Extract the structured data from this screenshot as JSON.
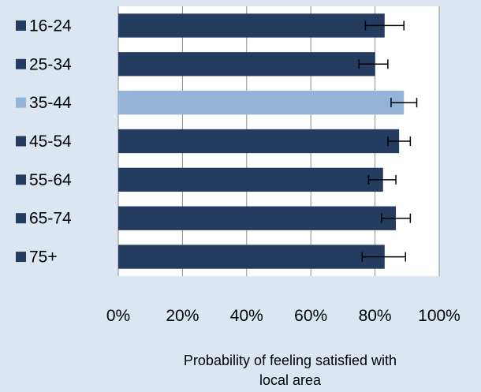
{
  "chart_data": {
    "type": "bar",
    "orientation": "horizontal",
    "title": "",
    "xlabel_lines": [
      "Probability of feeling satisfied with",
      "local area"
    ],
    "ylabel": "",
    "categories": [
      "16-24",
      "25-34",
      "35-44",
      "45-54",
      "55-64",
      "65-74",
      "75+"
    ],
    "values": [
      0.83,
      0.8,
      0.89,
      0.875,
      0.825,
      0.865,
      0.83
    ],
    "error_low": [
      0.77,
      0.75,
      0.85,
      0.84,
      0.78,
      0.82,
      0.76
    ],
    "error_high": [
      0.89,
      0.84,
      0.93,
      0.91,
      0.865,
      0.91,
      0.895
    ],
    "highlight_index": 2,
    "xlim": [
      0,
      1
    ],
    "xticks": [
      0,
      0.2,
      0.4,
      0.6,
      0.8,
      1.0
    ],
    "xtick_labels": [
      "0%",
      "20%",
      "40%",
      "60%",
      "80%",
      "100%"
    ],
    "grid": "vertical",
    "category_labels_with_legend_markers": true
  },
  "colors": {
    "background": "#dce6f2",
    "plot_background": "#ffffff",
    "bar": "#233c60",
    "bar_highlight": "#95b3d7",
    "grid": "#8c8c8c",
    "error_bar": "#000000",
    "text": "#000000"
  }
}
